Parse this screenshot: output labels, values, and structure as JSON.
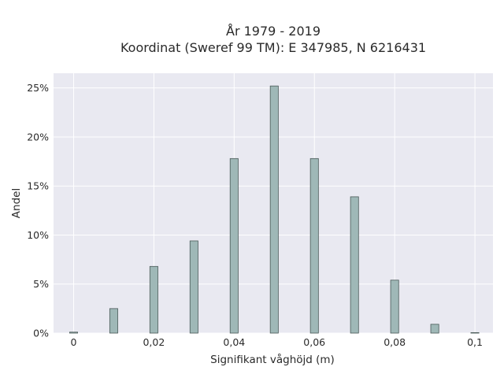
{
  "chart_data": {
    "type": "bar",
    "title_lines": [
      "År 1979 - 2019",
      "Koordinat (Sweref 99 TM): E 347985, N 6216431"
    ],
    "xlabel": "Signifikant våghöjd (m)",
    "ylabel": "Andel",
    "x": [
      0,
      0.01,
      0.02,
      0.03,
      0.04,
      0.05,
      0.06,
      0.07,
      0.08,
      0.09,
      0.1
    ],
    "values": [
      0.1,
      2.5,
      6.8,
      9.4,
      17.8,
      25.2,
      17.8,
      13.9,
      5.4,
      0.9,
      0.05
    ],
    "bar_width": 0.002,
    "xlim": [
      -0.005,
      0.1045
    ],
    "ylim": [
      0,
      26.5
    ],
    "xticks": [
      0,
      0.02,
      0.04,
      0.06,
      0.08,
      0.1
    ],
    "xtick_labels": [
      "0",
      "0,02",
      "0,04",
      "0,06",
      "0,08",
      "0,1"
    ],
    "yticks": [
      0,
      5,
      10,
      15,
      20,
      25
    ],
    "ytick_labels": [
      "0%",
      "5%",
      "10%",
      "15%",
      "20%",
      "25%"
    ],
    "grid": true,
    "colors": {
      "plot_background": "#e9e9f1",
      "grid": "#ffffff",
      "bar_fill": "#9fb8b7",
      "bar_edge": "#4a5a58"
    }
  }
}
